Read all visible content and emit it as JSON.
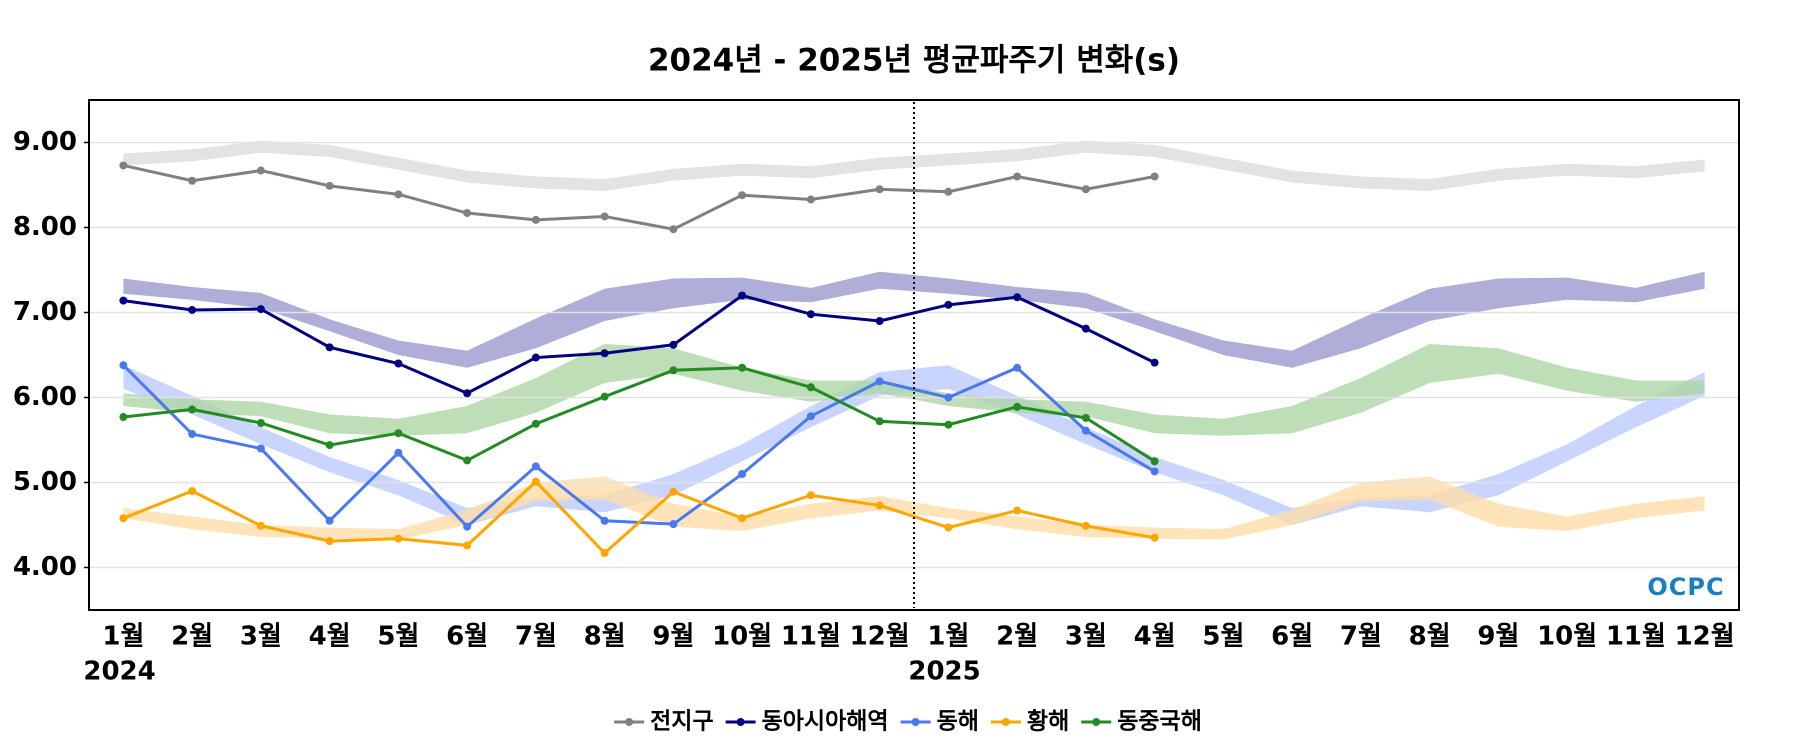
{
  "chart_data": {
    "type": "line",
    "title": "2024년 - 2025년 평균파주기 변화(s)",
    "categories": [
      "1월",
      "2월",
      "3월",
      "4월",
      "5월",
      "6월",
      "7월",
      "8월",
      "9월",
      "10월",
      "11월",
      "12월",
      "1월",
      "2월",
      "3월",
      "4월",
      "5월",
      "6월",
      "7월",
      "8월",
      "9월",
      "10월",
      "11월",
      "12월"
    ],
    "years": [
      "2024",
      "2025"
    ],
    "ylim": [
      3.5,
      9.5
    ],
    "yticks": [
      {
        "value": 4,
        "label": "4.00"
      },
      {
        "value": 5,
        "label": "5.00"
      },
      {
        "value": 6,
        "label": "6.00"
      },
      {
        "value": 7,
        "label": "7.00"
      },
      {
        "value": 8,
        "label": "8.00"
      },
      {
        "value": 9,
        "label": "9.00"
      }
    ],
    "grid": true,
    "legend": "bottom",
    "watermark": "OCPC",
    "series": [
      {
        "name": "전지구",
        "color": "#808080",
        "band_color": "#dcdcdc",
        "values": [
          8.73,
          8.55,
          8.67,
          8.49,
          8.39,
          8.17,
          8.09,
          8.13,
          7.98,
          8.38,
          8.33,
          8.45,
          8.42,
          8.6,
          8.45,
          8.6,
          null,
          null,
          null,
          null,
          null,
          null,
          null,
          null
        ],
        "band_low": [
          8.73,
          8.78,
          8.88,
          8.83,
          8.68,
          8.53,
          8.46,
          8.43,
          8.55,
          8.61,
          8.58,
          8.68,
          8.73,
          8.78,
          8.88,
          8.83,
          8.68,
          8.53,
          8.46,
          8.43,
          8.55,
          8.61,
          8.58,
          8.66
        ],
        "band_high": [
          8.87,
          8.92,
          9.02,
          8.97,
          8.82,
          8.67,
          8.6,
          8.57,
          8.69,
          8.75,
          8.72,
          8.82,
          8.87,
          8.92,
          9.02,
          8.97,
          8.82,
          8.67,
          8.6,
          8.57,
          8.69,
          8.75,
          8.72,
          8.8
        ]
      },
      {
        "name": "동아시아해역",
        "color": "#000080",
        "band_color": "#9a9ad0",
        "values": [
          7.14,
          7.03,
          7.04,
          6.59,
          6.4,
          6.05,
          6.47,
          6.52,
          6.62,
          7.2,
          6.98,
          6.9,
          7.09,
          7.18,
          6.81,
          6.41,
          null,
          null,
          null,
          null,
          null,
          null,
          null,
          null
        ],
        "band_low": [
          7.22,
          7.15,
          7.05,
          6.78,
          6.5,
          6.35,
          6.58,
          6.9,
          7.05,
          7.15,
          7.12,
          7.28,
          7.22,
          7.15,
          7.05,
          6.78,
          6.5,
          6.35,
          6.58,
          6.9,
          7.05,
          7.15,
          7.12,
          7.28
        ],
        "band_high": [
          7.4,
          7.3,
          7.23,
          6.92,
          6.67,
          6.55,
          6.93,
          7.28,
          7.4,
          7.41,
          7.29,
          7.48,
          7.4,
          7.3,
          7.23,
          6.92,
          6.67,
          6.55,
          6.93,
          7.28,
          7.4,
          7.41,
          7.29,
          7.48
        ]
      },
      {
        "name": "동해",
        "color": "#4a78f0",
        "band_color": "#bccbff",
        "values": [
          6.38,
          5.57,
          5.4,
          4.55,
          5.35,
          4.48,
          5.19,
          4.55,
          4.51,
          5.1,
          5.78,
          6.19,
          6.0,
          6.35,
          5.61,
          5.13,
          null,
          null,
          null,
          null,
          null,
          null,
          null,
          null
        ],
        "band_low": [
          6.1,
          5.8,
          5.45,
          5.12,
          4.85,
          4.5,
          4.72,
          4.65,
          4.85,
          5.25,
          5.65,
          6.02,
          6.1,
          5.8,
          5.45,
          5.12,
          4.85,
          4.5,
          4.72,
          4.65,
          4.85,
          5.25,
          5.65,
          6.02
        ],
        "band_high": [
          6.38,
          6.02,
          5.65,
          5.3,
          5.03,
          4.7,
          4.82,
          4.85,
          5.1,
          5.45,
          5.9,
          6.3,
          6.38,
          6.02,
          5.65,
          5.3,
          5.03,
          4.7,
          4.82,
          4.85,
          5.1,
          5.45,
          5.9,
          6.3
        ]
      },
      {
        "name": "황해",
        "color": "#ffa500",
        "band_color": "#ffdca8",
        "values": [
          4.58,
          4.9,
          4.49,
          4.31,
          4.34,
          4.26,
          5.01,
          4.17,
          4.89,
          4.58,
          4.85,
          4.73,
          4.47,
          4.67,
          4.49,
          4.35,
          null,
          null,
          null,
          null,
          null,
          null,
          null,
          null
        ],
        "band_low": [
          4.58,
          4.45,
          4.36,
          4.34,
          4.33,
          4.5,
          4.78,
          4.8,
          4.48,
          4.43,
          4.58,
          4.67,
          4.58,
          4.45,
          4.36,
          4.34,
          4.33,
          4.5,
          4.78,
          4.8,
          4.48,
          4.43,
          4.58,
          4.67
        ],
        "band_high": [
          4.7,
          4.6,
          4.5,
          4.47,
          4.45,
          4.68,
          5.0,
          5.07,
          4.75,
          4.6,
          4.75,
          4.84,
          4.7,
          4.6,
          4.5,
          4.47,
          4.45,
          4.68,
          5.0,
          5.07,
          4.75,
          4.6,
          4.75,
          4.84
        ]
      },
      {
        "name": "동중국해",
        "color": "#228b22",
        "band_color": "#acd6a4",
        "values": [
          5.77,
          5.86,
          5.7,
          5.44,
          5.58,
          5.26,
          5.69,
          6.01,
          6.32,
          6.35,
          6.12,
          5.72,
          5.68,
          5.89,
          5.76,
          5.25,
          null,
          null,
          null,
          null,
          null,
          null,
          null,
          null
        ],
        "band_low": [
          5.9,
          5.82,
          5.78,
          5.58,
          5.55,
          5.58,
          5.82,
          6.17,
          6.28,
          6.08,
          5.95,
          6.05,
          5.9,
          5.82,
          5.78,
          5.58,
          5.55,
          5.58,
          5.82,
          6.17,
          6.28,
          6.08,
          5.95,
          6.05
        ],
        "band_high": [
          6.05,
          5.98,
          5.95,
          5.8,
          5.75,
          5.9,
          6.23,
          6.63,
          6.58,
          6.35,
          6.2,
          6.2,
          6.05,
          5.98,
          5.95,
          5.8,
          5.75,
          5.9,
          6.23,
          6.63,
          6.58,
          6.35,
          6.2,
          6.2
        ]
      }
    ]
  }
}
